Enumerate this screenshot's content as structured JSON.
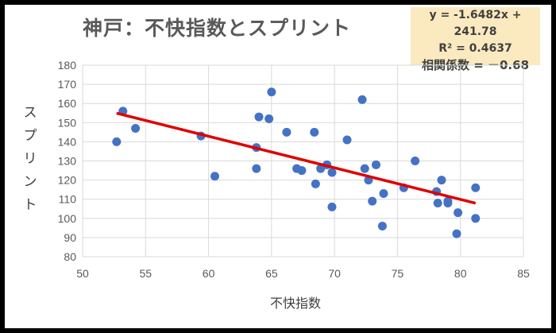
{
  "chart_data": {
    "type": "scatter",
    "title": "神戸：不快指数とスプリント",
    "xlabel": "不快指数",
    "ylabel": "スプリント",
    "xlim": [
      50,
      85
    ],
    "ylim": [
      80,
      180
    ],
    "xticks": [
      50,
      55,
      60,
      65,
      70,
      75,
      80,
      85
    ],
    "yticks": [
      80,
      90,
      100,
      110,
      120,
      130,
      140,
      150,
      160,
      170,
      180
    ],
    "grid": true,
    "marker_color": "#4472C4",
    "trend_color": "#E00000",
    "points": [
      [
        52.7,
        140
      ],
      [
        53.2,
        156
      ],
      [
        54.2,
        147
      ],
      [
        59.4,
        143
      ],
      [
        60.5,
        122
      ],
      [
        63.8,
        137
      ],
      [
        63.8,
        126
      ],
      [
        64.0,
        153
      ],
      [
        64.8,
        152
      ],
      [
        65.0,
        166
      ],
      [
        66.2,
        145
      ],
      [
        67.0,
        126
      ],
      [
        67.4,
        125
      ],
      [
        68.4,
        145
      ],
      [
        68.5,
        118
      ],
      [
        68.9,
        126
      ],
      [
        69.4,
        128
      ],
      [
        69.8,
        124
      ],
      [
        69.8,
        106
      ],
      [
        71.0,
        141
      ],
      [
        72.2,
        162
      ],
      [
        72.4,
        126
      ],
      [
        72.7,
        120
      ],
      [
        73.0,
        109
      ],
      [
        73.3,
        128
      ],
      [
        73.8,
        96
      ],
      [
        73.9,
        113
      ],
      [
        75.5,
        116
      ],
      [
        76.4,
        130
      ],
      [
        78.1,
        114
      ],
      [
        78.2,
        108
      ],
      [
        78.5,
        120
      ],
      [
        79.0,
        109
      ],
      [
        79.0,
        108
      ],
      [
        79.7,
        92
      ],
      [
        79.8,
        103
      ],
      [
        81.2,
        116
      ],
      [
        81.2,
        100
      ]
    ],
    "trendline": {
      "slope": -1.6482,
      "intercept": 241.78,
      "x_range": [
        52.7,
        81.2
      ]
    },
    "annotations": {
      "equation": "y = -1.6482x + 241.78",
      "r2": "R² = 0.4637",
      "correlation": "相関係数 = －0.68"
    }
  }
}
